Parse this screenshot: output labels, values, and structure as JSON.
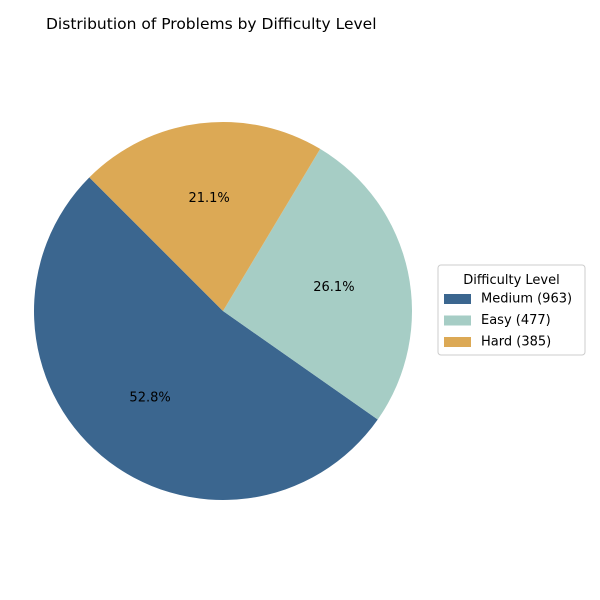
{
  "chart_data": {
    "type": "pie",
    "title": "Distribution of Problems by Difficulty Level",
    "legend_title": "Difficulty Level",
    "legend_position": "right",
    "start_angle_deg": 135,
    "direction": "counterclockwise",
    "slices": [
      {
        "name": "Medium",
        "value": 963,
        "label": "Medium (963)",
        "pct_label": "52.8%",
        "color": "#3b668f"
      },
      {
        "name": "Easy",
        "value": 477,
        "label": "Easy (477)",
        "pct_label": "26.1%",
        "color": "#a6cdc5"
      },
      {
        "name": "Hard",
        "value": 385,
        "label": "Hard (385)",
        "pct_label": "21.1%",
        "color": "#dca955"
      }
    ]
  }
}
